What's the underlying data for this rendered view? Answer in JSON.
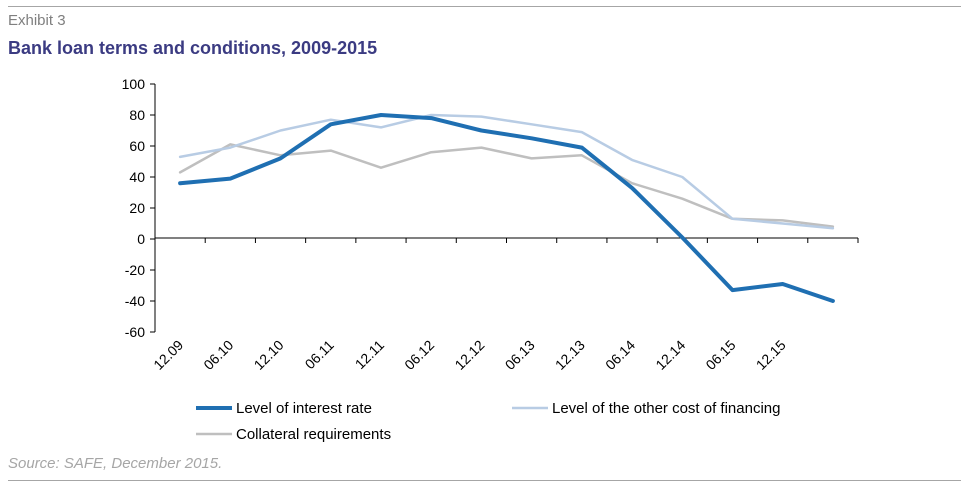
{
  "header": {
    "exhibit": "Exhibit 3",
    "title": "Bank loan terms and conditions, 2009-2015"
  },
  "footer": {
    "source": "Source: SAFE, December 2015."
  },
  "chart_data": {
    "type": "line",
    "title": "Bank loan terms and conditions, 2009-2015",
    "xlabel": "",
    "ylabel": "",
    "ylim": [
      -60,
      100
    ],
    "yticks": [
      100,
      80,
      60,
      40,
      20,
      0,
      -20,
      -40,
      -60
    ],
    "x": [
      "12.09",
      "06.10",
      "12.10",
      "06.11",
      "12.11",
      "06.12",
      "12.12",
      "06.13",
      "12.13",
      "06.14",
      "12.14",
      "06.15",
      "12.15",
      ""
    ],
    "x_tick_labels": [
      "12.09",
      "06.10",
      "12.10",
      "06.11",
      "12.11",
      "06.12",
      "12.12",
      "06.13",
      "12.13",
      "06.14",
      "12.14",
      "06.15",
      "12.15"
    ],
    "grid": false,
    "legend_position": "bottom",
    "series": [
      {
        "name": "Level of interest rate",
        "color": "#1f6fb2",
        "width": 4,
        "values": [
          36,
          39,
          52,
          74,
          80,
          78,
          70,
          65,
          59,
          33,
          1,
          -33,
          -29,
          -40
        ]
      },
      {
        "name": "Level of the other cost of financing",
        "color": "#b8cce4",
        "width": 2.5,
        "values": [
          53,
          59,
          70,
          77,
          72,
          80,
          79,
          74,
          69,
          51,
          40,
          13,
          10,
          7
        ]
      },
      {
        "name": "Collateral requirements",
        "color": "#bfbfbf",
        "width": 2.5,
        "values": [
          43,
          61,
          54,
          57,
          46,
          56,
          59,
          52,
          54,
          36,
          26,
          13,
          12,
          8
        ]
      }
    ]
  }
}
